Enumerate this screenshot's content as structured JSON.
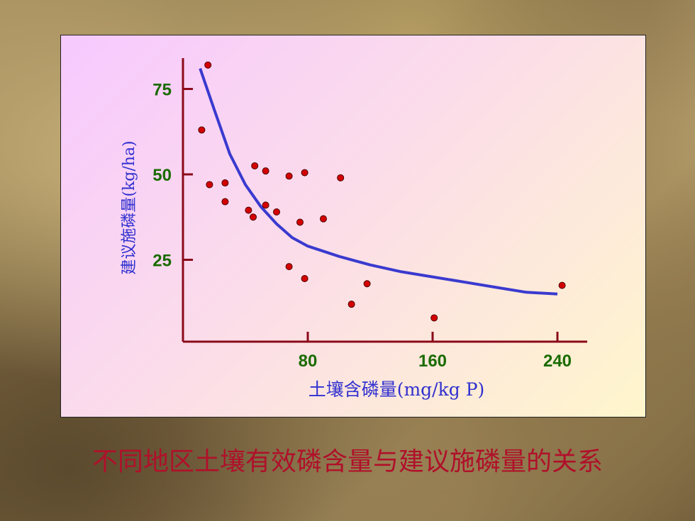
{
  "caption": "不同地区土壤有效磷含量与建议施磷量的关系",
  "chart_data": {
    "type": "scatter",
    "xlabel": "土壤含磷量(mg/kg P)",
    "ylabel": "建议施磷量(kg/ha)",
    "xticks": [
      80,
      160,
      240
    ],
    "yticks": [
      25,
      50,
      75
    ],
    "xlim": [
      0,
      260
    ],
    "ylim": [
      2,
      85
    ],
    "points": [
      {
        "x": 16,
        "y": 82
      },
      {
        "x": 12,
        "y": 63
      },
      {
        "x": 17,
        "y": 47
      },
      {
        "x": 27,
        "y": 47.5
      },
      {
        "x": 27,
        "y": 42
      },
      {
        "x": 42,
        "y": 39.5
      },
      {
        "x": 45,
        "y": 37.5
      },
      {
        "x": 46,
        "y": 52.5
      },
      {
        "x": 53,
        "y": 51
      },
      {
        "x": 53,
        "y": 41
      },
      {
        "x": 60,
        "y": 39
      },
      {
        "x": 68,
        "y": 49.5
      },
      {
        "x": 75,
        "y": 36
      },
      {
        "x": 78,
        "y": 50.5
      },
      {
        "x": 68,
        "y": 23
      },
      {
        "x": 78,
        "y": 19.5
      },
      {
        "x": 90,
        "y": 37
      },
      {
        "x": 101,
        "y": 49
      },
      {
        "x": 108,
        "y": 12
      },
      {
        "x": 118,
        "y": 18
      },
      {
        "x": 161,
        "y": 8
      },
      {
        "x": 243,
        "y": 17.5
      }
    ],
    "curve": [
      {
        "x": 11,
        "y": 81
      },
      {
        "x": 20,
        "y": 69
      },
      {
        "x": 30,
        "y": 56
      },
      {
        "x": 40,
        "y": 47
      },
      {
        "x": 50,
        "y": 40.5
      },
      {
        "x": 60,
        "y": 35.5
      },
      {
        "x": 70,
        "y": 31.5
      },
      {
        "x": 80,
        "y": 29
      },
      {
        "x": 100,
        "y": 26
      },
      {
        "x": 120,
        "y": 23.5
      },
      {
        "x": 140,
        "y": 21.5
      },
      {
        "x": 160,
        "y": 20
      },
      {
        "x": 180,
        "y": 18.5
      },
      {
        "x": 200,
        "y": 17
      },
      {
        "x": 220,
        "y": 15.5
      },
      {
        "x": 240,
        "y": 15
      }
    ],
    "colors": {
      "axis": "#8b0a1a",
      "points_fill": "#d40000",
      "points_stroke": "#4a0000",
      "curve": "#3a3acf",
      "ytick_label": "#1a6b00",
      "xtick_label": "#1a6b00",
      "axis_title": "#3030d0"
    }
  }
}
